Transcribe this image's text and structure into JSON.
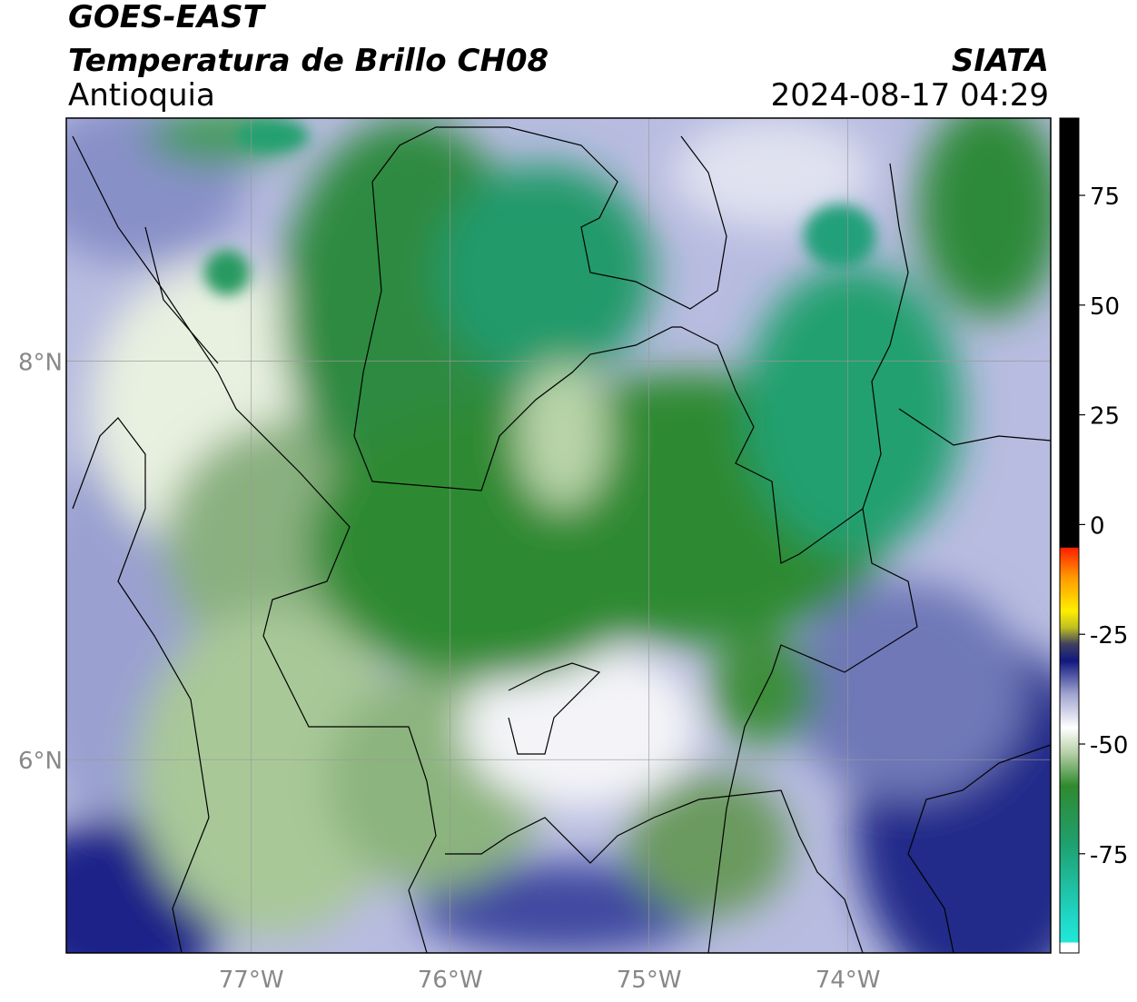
{
  "header": {
    "title": "GOES-EAST",
    "subtitle": "Temperatura de Brillo CH08",
    "region": "Antioquia",
    "source": "SIATA",
    "datetime": "2024-08-17 04:29"
  },
  "map": {
    "lonlim": [
      -77.93,
      -72.98
    ],
    "latlim": [
      5.03,
      9.22
    ],
    "lon_ticks": [
      {
        "value": -77,
        "label": "77°W"
      },
      {
        "value": -76,
        "label": "76°W"
      },
      {
        "value": -75,
        "label": "75°W"
      },
      {
        "value": -74,
        "label": "74°W"
      }
    ],
    "lat_ticks": [
      {
        "value": 8,
        "label": "8°N"
      },
      {
        "value": 6,
        "label": "6°N"
      }
    ]
  },
  "colorbar": {
    "lim": [
      -97.6,
      92.6
    ],
    "ticks": [
      75,
      50,
      25,
      0,
      -25,
      -50,
      -75
    ]
  }
}
